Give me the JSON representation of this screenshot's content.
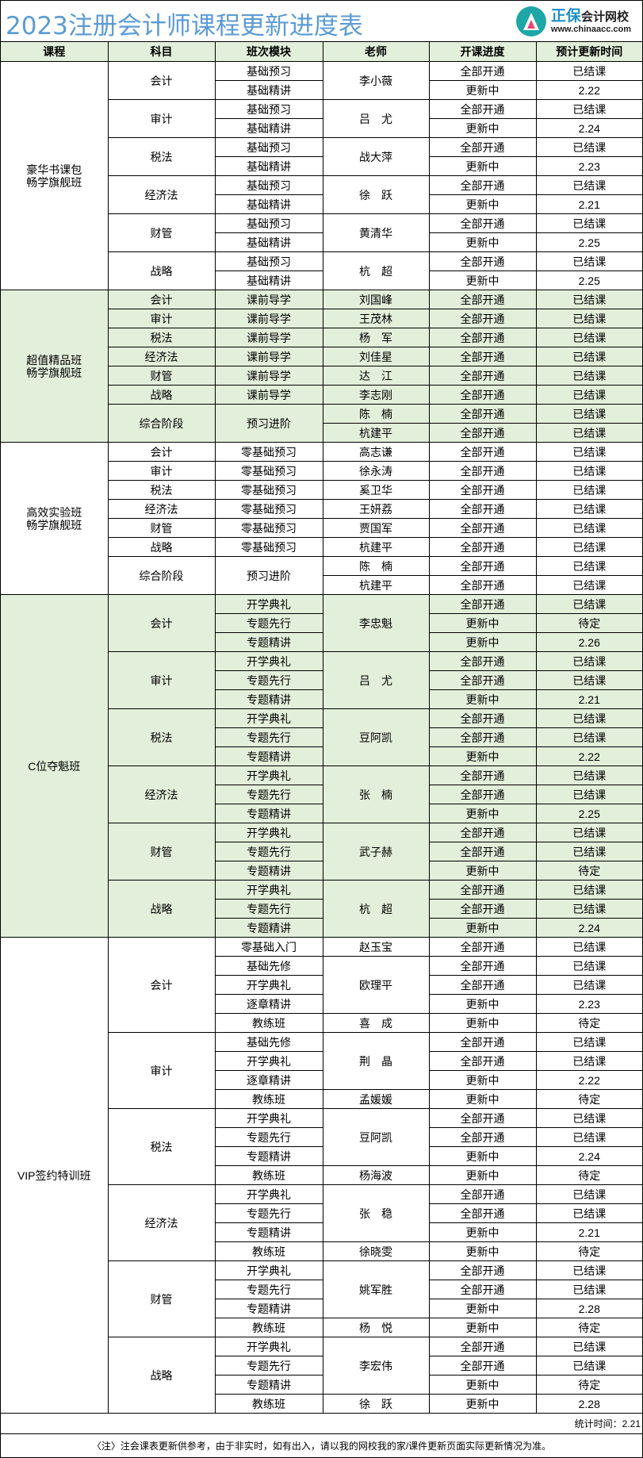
{
  "title": "2023注册会计师课程更新进度表",
  "logo": {
    "brand": "正保",
    "name": "会计网校",
    "url": "www.chinaacc.com",
    "color": "#1fa6a6"
  },
  "colors": {
    "title": "#5b9bd5",
    "header_bg": "#e2efda",
    "section_green": "#e2efda"
  },
  "headers": [
    "课程",
    "科目",
    "班次模块",
    "老师",
    "开课进度",
    "预计更新时间"
  ],
  "sections": [
    {
      "course": "豪华书课包\n畅学旗舰班",
      "green": false,
      "subjects": [
        {
          "name": "会计",
          "rows": [
            [
              "基础预习",
              "李小薇",
              "全部开通",
              "已结课"
            ],
            [
              "基础精讲",
              "李小薇",
              "更新中",
              "2.22"
            ]
          ]
        },
        {
          "name": "审计",
          "rows": [
            [
              "基础预习",
              "吕　尤",
              "全部开通",
              "已结课"
            ],
            [
              "基础精讲",
              "吕　尤",
              "更新中",
              "2.24"
            ]
          ]
        },
        {
          "name": "税法",
          "rows": [
            [
              "基础预习",
              "战大萍",
              "全部开通",
              "已结课"
            ],
            [
              "基础精讲",
              "战大萍",
              "更新中",
              "2.23"
            ]
          ]
        },
        {
          "name": "经济法",
          "rows": [
            [
              "基础预习",
              "徐　跃",
              "全部开通",
              "已结课"
            ],
            [
              "基础精讲",
              "徐　跃",
              "更新中",
              "2.21"
            ]
          ]
        },
        {
          "name": "财管",
          "rows": [
            [
              "基础预习",
              "黄清华",
              "全部开通",
              "已结课"
            ],
            [
              "基础精讲",
              "黄清华",
              "更新中",
              "2.25"
            ]
          ]
        },
        {
          "name": "战略",
          "rows": [
            [
              "基础预习",
              "杭　超",
              "全部开通",
              "已结课"
            ],
            [
              "基础精讲",
              "杭　超",
              "更新中",
              "2.25"
            ]
          ]
        }
      ]
    },
    {
      "course": "超值精品班\n畅学旗舰班",
      "green": true,
      "subjects": [
        {
          "name": "会计",
          "rows": [
            [
              "课前导学",
              "刘国峰",
              "全部开通",
              "已结课"
            ]
          ]
        },
        {
          "name": "审计",
          "rows": [
            [
              "课前导学",
              "王茂林",
              "全部开通",
              "已结课"
            ]
          ]
        },
        {
          "name": "税法",
          "rows": [
            [
              "课前导学",
              "杨　军",
              "全部开通",
              "已结课"
            ]
          ]
        },
        {
          "name": "经济法",
          "rows": [
            [
              "课前导学",
              "刘佳星",
              "全部开通",
              "已结课"
            ]
          ]
        },
        {
          "name": "财管",
          "rows": [
            [
              "课前导学",
              "达　江",
              "全部开通",
              "已结课"
            ]
          ]
        },
        {
          "name": "战略",
          "rows": [
            [
              "课前导学",
              "李志刚",
              "全部开通",
              "已结课"
            ]
          ]
        },
        {
          "name": "综合阶段",
          "rows": [
            [
              "预习进阶",
              "陈　楠",
              "全部开通",
              "已结课"
            ],
            [
              "预习进阶",
              "杭建平",
              "全部开通",
              "已结课"
            ]
          ]
        }
      ]
    },
    {
      "course": "高效实验班\n畅学旗舰班",
      "green": false,
      "subjects": [
        {
          "name": "会计",
          "rows": [
            [
              "零基础预习",
              "高志谦",
              "全部开通",
              "已结课"
            ]
          ]
        },
        {
          "name": "审计",
          "rows": [
            [
              "零基础预习",
              "徐永涛",
              "全部开通",
              "已结课"
            ]
          ]
        },
        {
          "name": "税法",
          "rows": [
            [
              "零基础预习",
              "奚卫华",
              "全部开通",
              "已结课"
            ]
          ]
        },
        {
          "name": "经济法",
          "rows": [
            [
              "零基础预习",
              "王妍荔",
              "全部开通",
              "已结课"
            ]
          ]
        },
        {
          "name": "财管",
          "rows": [
            [
              "零基础预习",
              "贾国军",
              "全部开通",
              "已结课"
            ]
          ]
        },
        {
          "name": "战略",
          "rows": [
            [
              "零基础预习",
              "杭建平",
              "全部开通",
              "已结课"
            ]
          ]
        },
        {
          "name": "综合阶段",
          "rows": [
            [
              "预习进阶",
              "陈　楠",
              "全部开通",
              "已结课"
            ],
            [
              "预习进阶",
              "杭建平",
              "全部开通",
              "已结课"
            ]
          ]
        }
      ]
    },
    {
      "course": "C位夺魁班",
      "green": true,
      "subjects": [
        {
          "name": "会计",
          "rows": [
            [
              "开学典礼",
              "李忠魁",
              "全部开通",
              "已结课"
            ],
            [
              "专题先行",
              "李忠魁",
              "更新中",
              "待定"
            ],
            [
              "专题精讲",
              "李忠魁",
              "更新中",
              "2.26"
            ]
          ]
        },
        {
          "name": "审计",
          "rows": [
            [
              "开学典礼",
              "吕　尤",
              "全部开通",
              "已结课"
            ],
            [
              "专题先行",
              "吕　尤",
              "全部开通",
              "已结课"
            ],
            [
              "专题精讲",
              "吕　尤",
              "更新中",
              "2.21"
            ]
          ]
        },
        {
          "name": "税法",
          "rows": [
            [
              "开学典礼",
              "豆阿凯",
              "全部开通",
              "已结课"
            ],
            [
              "专题先行",
              "豆阿凯",
              "全部开通",
              "已结课"
            ],
            [
              "专题精讲",
              "豆阿凯",
              "更新中",
              "2.22"
            ]
          ]
        },
        {
          "name": "经济法",
          "rows": [
            [
              "开学典礼",
              "张　楠",
              "全部开通",
              "已结课"
            ],
            [
              "专题先行",
              "张　楠",
              "全部开通",
              "已结课"
            ],
            [
              "专题精讲",
              "张　楠",
              "更新中",
              "2.25"
            ]
          ]
        },
        {
          "name": "财管",
          "rows": [
            [
              "开学典礼",
              "武子赫",
              "全部开通",
              "已结课"
            ],
            [
              "专题先行",
              "武子赫",
              "全部开通",
              "已结课"
            ],
            [
              "专题精讲",
              "武子赫",
              "更新中",
              "待定"
            ]
          ]
        },
        {
          "name": "战略",
          "rows": [
            [
              "开学典礼",
              "杭　超",
              "全部开通",
              "已结课"
            ],
            [
              "专题先行",
              "杭　超",
              "全部开通",
              "已结课"
            ],
            [
              "专题精讲",
              "杭　超",
              "更新中",
              "2.24"
            ]
          ]
        }
      ]
    },
    {
      "course": "VIP签约特训班",
      "green": false,
      "subjects": [
        {
          "name": "会计",
          "rows": [
            [
              "零基础入门",
              "赵玉宝",
              "全部开通",
              "已结课"
            ],
            [
              "基础先修",
              "欧理平",
              "全部开通",
              "已结课"
            ],
            [
              "开学典礼",
              "欧理平",
              "全部开通",
              "已结课"
            ],
            [
              "逐章精讲",
              "欧理平",
              "更新中",
              "2.23"
            ],
            [
              "教练班",
              "喜　成",
              "更新中",
              "待定"
            ]
          ]
        },
        {
          "name": "审计",
          "rows": [
            [
              "基础先修",
              "荆　晶",
              "全部开通",
              "已结课"
            ],
            [
              "开学典礼",
              "荆　晶",
              "全部开通",
              "已结课"
            ],
            [
              "逐章精讲",
              "荆　晶",
              "更新中",
              "2.22"
            ],
            [
              "教练班",
              "孟媛媛",
              "更新中",
              "待定"
            ]
          ]
        },
        {
          "name": "税法",
          "rows": [
            [
              "开学典礼",
              "豆阿凯",
              "全部开通",
              "已结课"
            ],
            [
              "专题先行",
              "豆阿凯",
              "全部开通",
              "已结课"
            ],
            [
              "专题精讲",
              "豆阿凯",
              "更新中",
              "2.24"
            ],
            [
              "教练班",
              "杨海波",
              "更新中",
              "待定"
            ]
          ]
        },
        {
          "name": "经济法",
          "rows": [
            [
              "开学典礼",
              "张　稳",
              "全部开通",
              "已结课"
            ],
            [
              "专题先行",
              "张　稳",
              "全部开通",
              "已结课"
            ],
            [
              "专题精讲",
              "张　稳",
              "更新中",
              "2.21"
            ],
            [
              "教练班",
              "徐晓雯",
              "更新中",
              "待定"
            ]
          ]
        },
        {
          "name": "财管",
          "rows": [
            [
              "开学典礼",
              "姚军胜",
              "全部开通",
              "已结课"
            ],
            [
              "专题先行",
              "姚军胜",
              "全部开通",
              "已结课"
            ],
            [
              "专题精讲",
              "姚军胜",
              "更新中",
              "2.28"
            ],
            [
              "教练班",
              "杨　悦",
              "更新中",
              "待定"
            ]
          ]
        },
        {
          "name": "战略",
          "rows": [
            [
              "开学典礼",
              "李宏伟",
              "全部开通",
              "已结课"
            ],
            [
              "专题先行",
              "李宏伟",
              "全部开通",
              "已结课"
            ],
            [
              "专题精讲",
              "李宏伟",
              "更新中",
              "待定"
            ],
            [
              "教练班",
              "徐　跃",
              "更新中",
              "2.28"
            ]
          ]
        }
      ]
    }
  ],
  "stat_time": "统计时间：2.21",
  "note": "〈注〉注会课表更新供参考，由于非实时，如有出入，请以我的网校我的家/课件更新页面实际更新情况为准。"
}
